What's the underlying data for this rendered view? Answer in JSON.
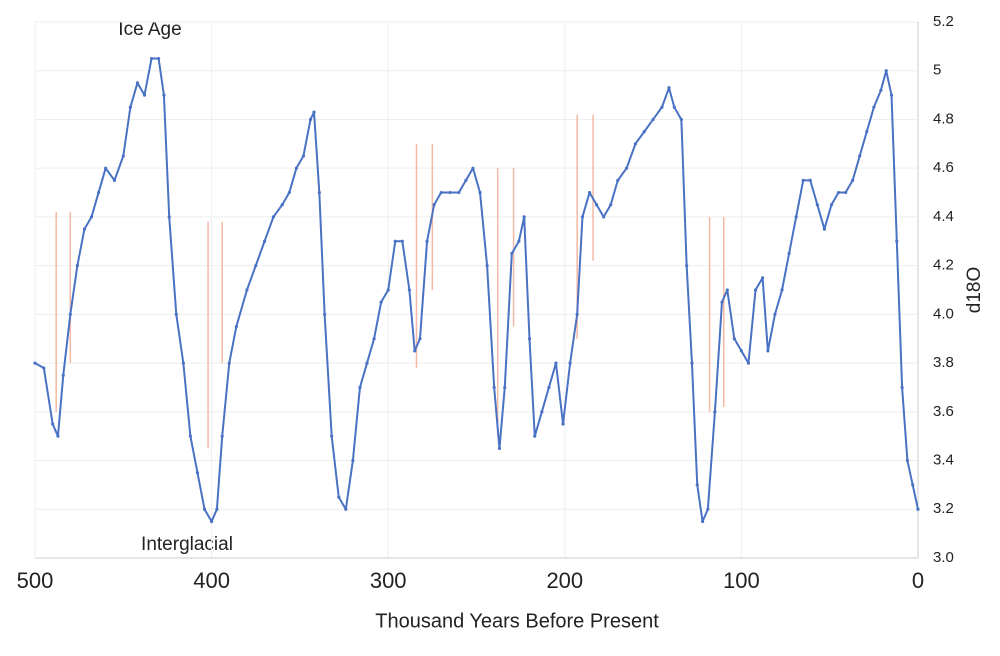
{
  "chart_data": {
    "type": "line",
    "annotations": [
      "Ice Age",
      "Interglacial"
    ],
    "xlabel": "Thousand Years Before Present",
    "ylabel": "d18O",
    "x": [
      500,
      495,
      490,
      487,
      484,
      480,
      476,
      472,
      468,
      464,
      460,
      455,
      450,
      446,
      442,
      438,
      434,
      430,
      427,
      424,
      420,
      416,
      412,
      408,
      404,
      400,
      397,
      394,
      390,
      386,
      380,
      375,
      370,
      365,
      360,
      356,
      352,
      348,
      344,
      342,
      339,
      336,
      332,
      328,
      324,
      320,
      316,
      312,
      308,
      304,
      300,
      296,
      292,
      288,
      285,
      282,
      278,
      274,
      270,
      265,
      260,
      256,
      252,
      248,
      244,
      240,
      237,
      234,
      230,
      226,
      223,
      220,
      217,
      213,
      209,
      205,
      201,
      197,
      193,
      190,
      186,
      182,
      178,
      174,
      170,
      165,
      160,
      155,
      150,
      145,
      141,
      138,
      134,
      131,
      128,
      125,
      122,
      119,
      115,
      111,
      108,
      104,
      100,
      96,
      92,
      88,
      85,
      81,
      77,
      73,
      69,
      65,
      61,
      57,
      53,
      49,
      45,
      41,
      37,
      33,
      29,
      25,
      21,
      18,
      15,
      12,
      9,
      6,
      3,
      0
    ],
    "series": [
      {
        "color": "#4a72c4",
        "values": [
          3.8,
          3.78,
          3.55,
          3.5,
          3.75,
          4.0,
          4.2,
          4.35,
          4.4,
          4.5,
          4.6,
          4.55,
          4.65,
          4.85,
          4.95,
          4.9,
          5.05,
          5.05,
          4.9,
          4.4,
          4.0,
          3.8,
          3.5,
          3.35,
          3.2,
          3.15,
          3.2,
          3.5,
          3.8,
          3.95,
          4.1,
          4.2,
          4.3,
          4.4,
          4.45,
          4.5,
          4.6,
          4.65,
          4.8,
          4.83,
          4.5,
          4.0,
          3.5,
          3.25,
          3.2,
          3.4,
          3.7,
          3.8,
          3.9,
          4.05,
          4.1,
          4.3,
          4.3,
          4.1,
          3.85,
          3.9,
          4.3,
          4.45,
          4.5,
          4.5,
          4.5,
          4.55,
          4.6,
          4.5,
          4.2,
          3.7,
          3.45,
          3.7,
          4.25,
          4.3,
          4.4,
          3.9,
          3.5,
          3.6,
          3.7,
          3.8,
          3.55,
          3.8,
          4.0,
          4.4,
          4.5,
          4.45,
          4.4,
          4.45,
          4.55,
          4.6,
          4.7,
          4.75,
          4.8,
          4.85,
          4.93,
          4.85,
          4.8,
          4.2,
          3.8,
          3.3,
          3.15,
          3.2,
          3.6,
          4.05,
          4.1,
          3.9,
          3.85,
          3.8,
          4.1,
          4.15,
          3.85,
          4.0,
          4.1,
          4.25,
          4.4,
          4.55,
          4.55,
          4.45,
          4.35,
          4.45,
          4.5,
          4.5,
          4.55,
          4.65,
          4.75,
          4.85,
          4.92,
          5.0,
          4.9,
          4.3,
          3.7,
          3.4,
          3.3,
          3.2
        ]
      }
    ],
    "range_lines": {
      "color": "#f4b8a4",
      "x": [
        488,
        480,
        402,
        394,
        284,
        275,
        238,
        229,
        193,
        184,
        118,
        110
      ],
      "low": [
        3.6,
        3.8,
        3.45,
        3.8,
        3.78,
        4.1,
        3.5,
        3.95,
        3.9,
        4.22,
        3.6,
        3.62
      ],
      "high": [
        4.42,
        4.42,
        4.38,
        4.38,
        4.7,
        4.7,
        4.6,
        4.6,
        4.82,
        4.82,
        4.4,
        4.4
      ]
    },
    "xlim": [
      500,
      0
    ],
    "xticks": [
      500,
      400,
      300,
      200,
      100,
      0
    ],
    "ylim": [
      3.0,
      5.2
    ],
    "yticks": [
      {
        "value": 3.0,
        "label": "3.0"
      },
      3.2,
      3.4,
      3.6,
      3.8,
      {
        "value": 4.0,
        "label": "4.0"
      },
      4.2,
      4.4,
      4.6,
      4.8,
      5,
      5.2
    ],
    "grid": true
  }
}
